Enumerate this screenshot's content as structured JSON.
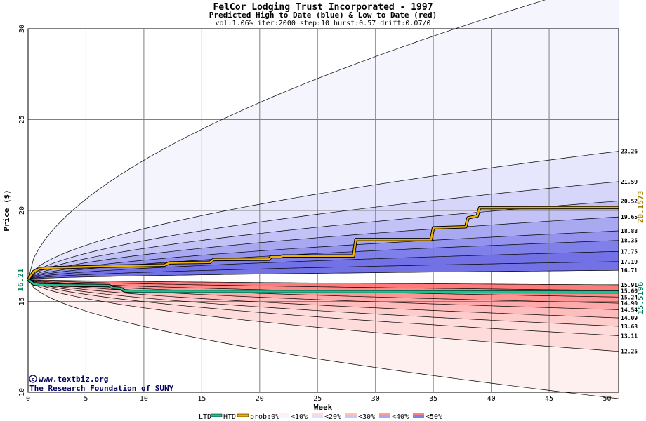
{
  "chart_data": {
    "type": "line",
    "title": "FelCor Lodging Trust Incorporated - 1997",
    "subtitle": "Predicted High to Date (blue) &  Low to Date (red)",
    "params": "vol:1.06% iter:2000 step:10 hurst:0.57 drift:0.07/0",
    "xlabel": "Week",
    "ylabel": "Price ($)",
    "xlim": [
      0,
      51
    ],
    "ylim": [
      10,
      30
    ],
    "x_ticks": [
      0,
      5,
      10,
      15,
      20,
      25,
      30,
      35,
      40,
      45,
      50
    ],
    "y_ticks": [
      10,
      15,
      20,
      25,
      30
    ],
    "grid": true,
    "start_price": 16.21,
    "start_label": "16.21",
    "htd_final": 20.1573,
    "htd_label": "20.1573",
    "ltd_final": 15.5196,
    "ltd_label": "15.5196",
    "percentile_labels": [
      "23.26",
      "21.59",
      "20.52",
      "19.65",
      "18.88",
      "18.35",
      "17.75",
      "17.19",
      "16.71",
      "15.91",
      "15.60",
      "15.24",
      "14.90",
      "14.54",
      "14.09",
      "13.63",
      "13.11",
      "12.25"
    ],
    "series": [
      {
        "name": "HTD",
        "color": "#f0b000",
        "x": [
          0,
          0.5,
          1,
          2,
          5,
          8,
          11.8,
          12.2,
          15.7,
          16,
          20.8,
          21,
          21.8,
          22,
          28.1,
          28.3,
          34.8,
          35,
          37.8,
          38,
          38.8,
          39,
          51
        ],
        "values": [
          16.21,
          16.65,
          16.8,
          16.85,
          16.9,
          16.95,
          17.0,
          17.12,
          17.15,
          17.3,
          17.32,
          17.45,
          17.45,
          17.5,
          17.5,
          18.4,
          18.4,
          19.05,
          19.1,
          19.6,
          19.7,
          20.15,
          20.16
        ]
      },
      {
        "name": "LTD",
        "color": "#20c090",
        "x": [
          0,
          0.5,
          1,
          2,
          5,
          7,
          7.3,
          8,
          8.3,
          9,
          51
        ],
        "values": [
          16.21,
          15.95,
          15.92,
          15.9,
          15.88,
          15.87,
          15.75,
          15.72,
          15.58,
          15.55,
          15.52
        ]
      }
    ],
    "legend": {
      "position": "bottom",
      "ltd": "LTD",
      "htd": "HTD",
      "prob": "prob:0%",
      "bins": [
        "<10%",
        "<20%",
        "<30%",
        "<40%",
        "<50%"
      ]
    },
    "watermark": {
      "line1": "www.textbiz.org",
      "line2": "The Research Foundation of SUNY"
    }
  }
}
